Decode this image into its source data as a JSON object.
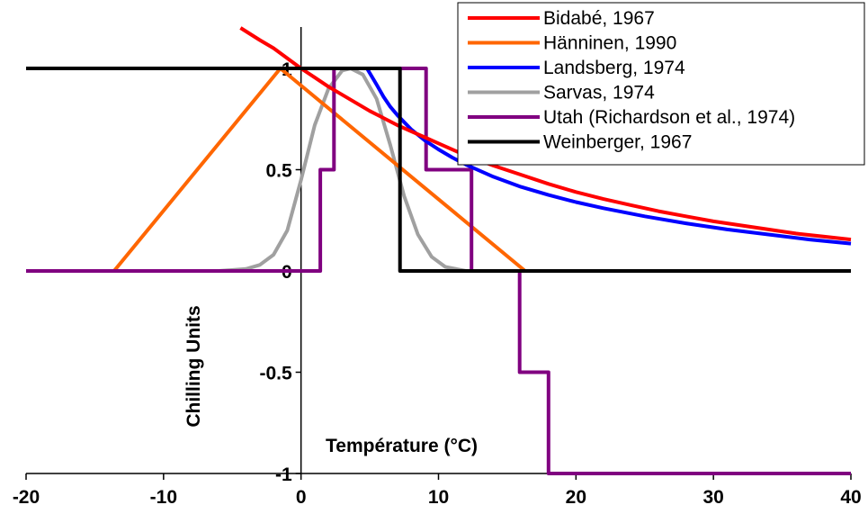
{
  "chart_data": {
    "type": "line",
    "title": "",
    "xlabel": "Température (°C)",
    "ylabel": "Chilling Units",
    "xlim": [
      -20,
      40
    ],
    "ylim": [
      -1,
      1.15
    ],
    "x_ticks": [
      -20,
      -10,
      0,
      10,
      20,
      30,
      40
    ],
    "x_tick_labels": [
      "-20",
      "-10",
      "0",
      "10",
      "20",
      "30",
      "40"
    ],
    "y_ticks": [
      -1,
      -0.5,
      0,
      0.5,
      1
    ],
    "y_tick_labels": [
      "-1",
      "-0.5",
      "0",
      "0.5",
      "1"
    ],
    "grid": false,
    "legend_position": "top-right",
    "series": [
      {
        "name": "Bidabé, 1967",
        "color": "#ff0000",
        "x": [
          -4.4,
          -3,
          -2,
          -1,
          0,
          1,
          2,
          3,
          4,
          5,
          6,
          7,
          8,
          9,
          10,
          12,
          14,
          16,
          18,
          20,
          22,
          24,
          26,
          28,
          30,
          32,
          34,
          36,
          38,
          40
        ],
        "y": [
          1.2,
          1.14,
          1.1,
          1.05,
          1.0,
          0.955,
          0.91,
          0.87,
          0.83,
          0.79,
          0.755,
          0.72,
          0.69,
          0.66,
          0.63,
          0.57,
          0.52,
          0.475,
          0.43,
          0.39,
          0.355,
          0.325,
          0.295,
          0.27,
          0.245,
          0.225,
          0.205,
          0.185,
          0.17,
          0.155
        ]
      },
      {
        "name": "Hänninen, 1990",
        "color": "#ff6600",
        "x": [
          -20,
          -13.6,
          -1.5,
          16.3,
          40
        ],
        "y": [
          0,
          0,
          1,
          0,
          0
        ]
      },
      {
        "name": "Landsberg, 1974",
        "color": "#0000ff",
        "x": [
          4.8,
          5.5,
          6,
          6.5,
          7,
          8,
          9,
          10,
          11,
          12,
          14,
          16,
          18,
          20,
          22,
          25,
          28,
          31,
          34,
          37,
          40
        ],
        "y": [
          1.0,
          0.92,
          0.86,
          0.81,
          0.77,
          0.7,
          0.645,
          0.6,
          0.56,
          0.525,
          0.465,
          0.415,
          0.375,
          0.34,
          0.31,
          0.27,
          0.235,
          0.205,
          0.18,
          0.155,
          0.135
        ]
      },
      {
        "name": "Sarvas, 1974",
        "color": "#a0a0a0",
        "x": [
          -20,
          -6,
          -4,
          -3,
          -2,
          -1,
          0,
          1,
          2,
          3,
          3.6,
          4.5,
          5.5,
          6.5,
          7.5,
          8.5,
          9.5,
          10.5,
          12,
          16,
          40
        ],
        "y": [
          0,
          0,
          0.01,
          0.03,
          0.08,
          0.2,
          0.45,
          0.72,
          0.9,
          0.99,
          1.0,
          0.97,
          0.85,
          0.62,
          0.37,
          0.18,
          0.07,
          0.02,
          0,
          0,
          0
        ]
      },
      {
        "name": "Utah (Richardson et al., 1974)",
        "color": "#800080",
        "x": [
          -20,
          1.4,
          1.4,
          2.4,
          2.4,
          9.1,
          9.1,
          12.4,
          12.4,
          15.9,
          15.9,
          18.0,
          18.0,
          40
        ],
        "y": [
          0,
          0,
          0.5,
          0.5,
          1,
          1,
          0.5,
          0.5,
          0,
          0,
          -0.5,
          -0.5,
          -1,
          -1
        ]
      },
      {
        "name": "Weinberger, 1967",
        "color": "#000000",
        "x": [
          -20,
          7.2,
          7.2,
          40
        ],
        "y": [
          1,
          1,
          0,
          0
        ]
      }
    ]
  }
}
